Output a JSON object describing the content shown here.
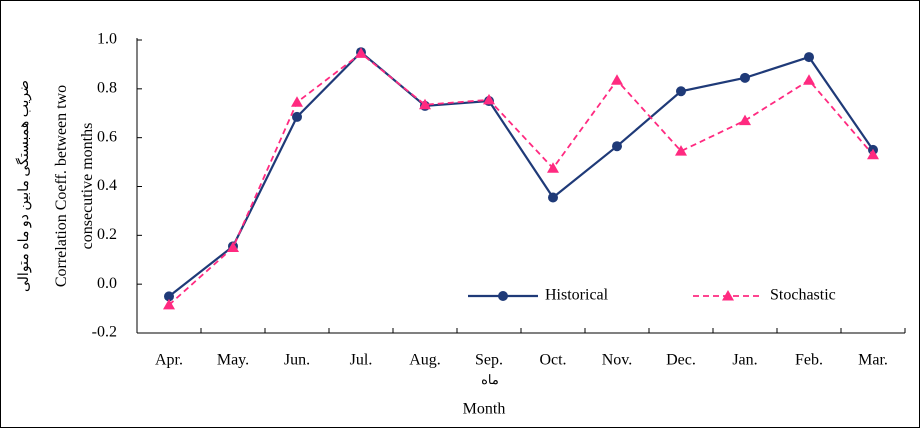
{
  "chart_data": {
    "type": "line",
    "ylabel": "Correlation Coeff. between two consecutive months",
    "ylabel_fa": "ضریب همبستگی مابین دو ماه متوالی",
    "xlabel": "Month",
    "xlabel_fa": "ماه",
    "categories": [
      "Apr.",
      "May.",
      "Jun.",
      "Jul.",
      "Aug.",
      "Sep.",
      "Oct.",
      "Nov.",
      "Dec.",
      "Jan.",
      "Feb.",
      "Mar."
    ],
    "series": [
      {
        "name": "Historical",
        "color": "#1f3a78",
        "marker": "circle",
        "dashed": false,
        "values": [
          -0.05,
          0.155,
          0.685,
          0.95,
          0.73,
          0.75,
          0.355,
          0.565,
          0.79,
          0.845,
          0.93,
          0.55
        ]
      },
      {
        "name": "Stochastic",
        "color": "#ff2a80",
        "marker": "triangle",
        "dashed": true,
        "values": [
          -0.085,
          0.15,
          0.745,
          0.945,
          0.735,
          0.755,
          0.475,
          0.835,
          0.545,
          0.67,
          0.835,
          0.53
        ]
      }
    ],
    "ylim": [
      -0.2,
      1.0
    ],
    "yticks": [
      -0.2,
      {
        "value": 0,
        "label": "0.0"
      },
      0.2,
      0.4,
      0.6,
      0.8,
      {
        "value": 1,
        "label": "1.0"
      }
    ],
    "grid": false,
    "legend": "bottom-right"
  }
}
